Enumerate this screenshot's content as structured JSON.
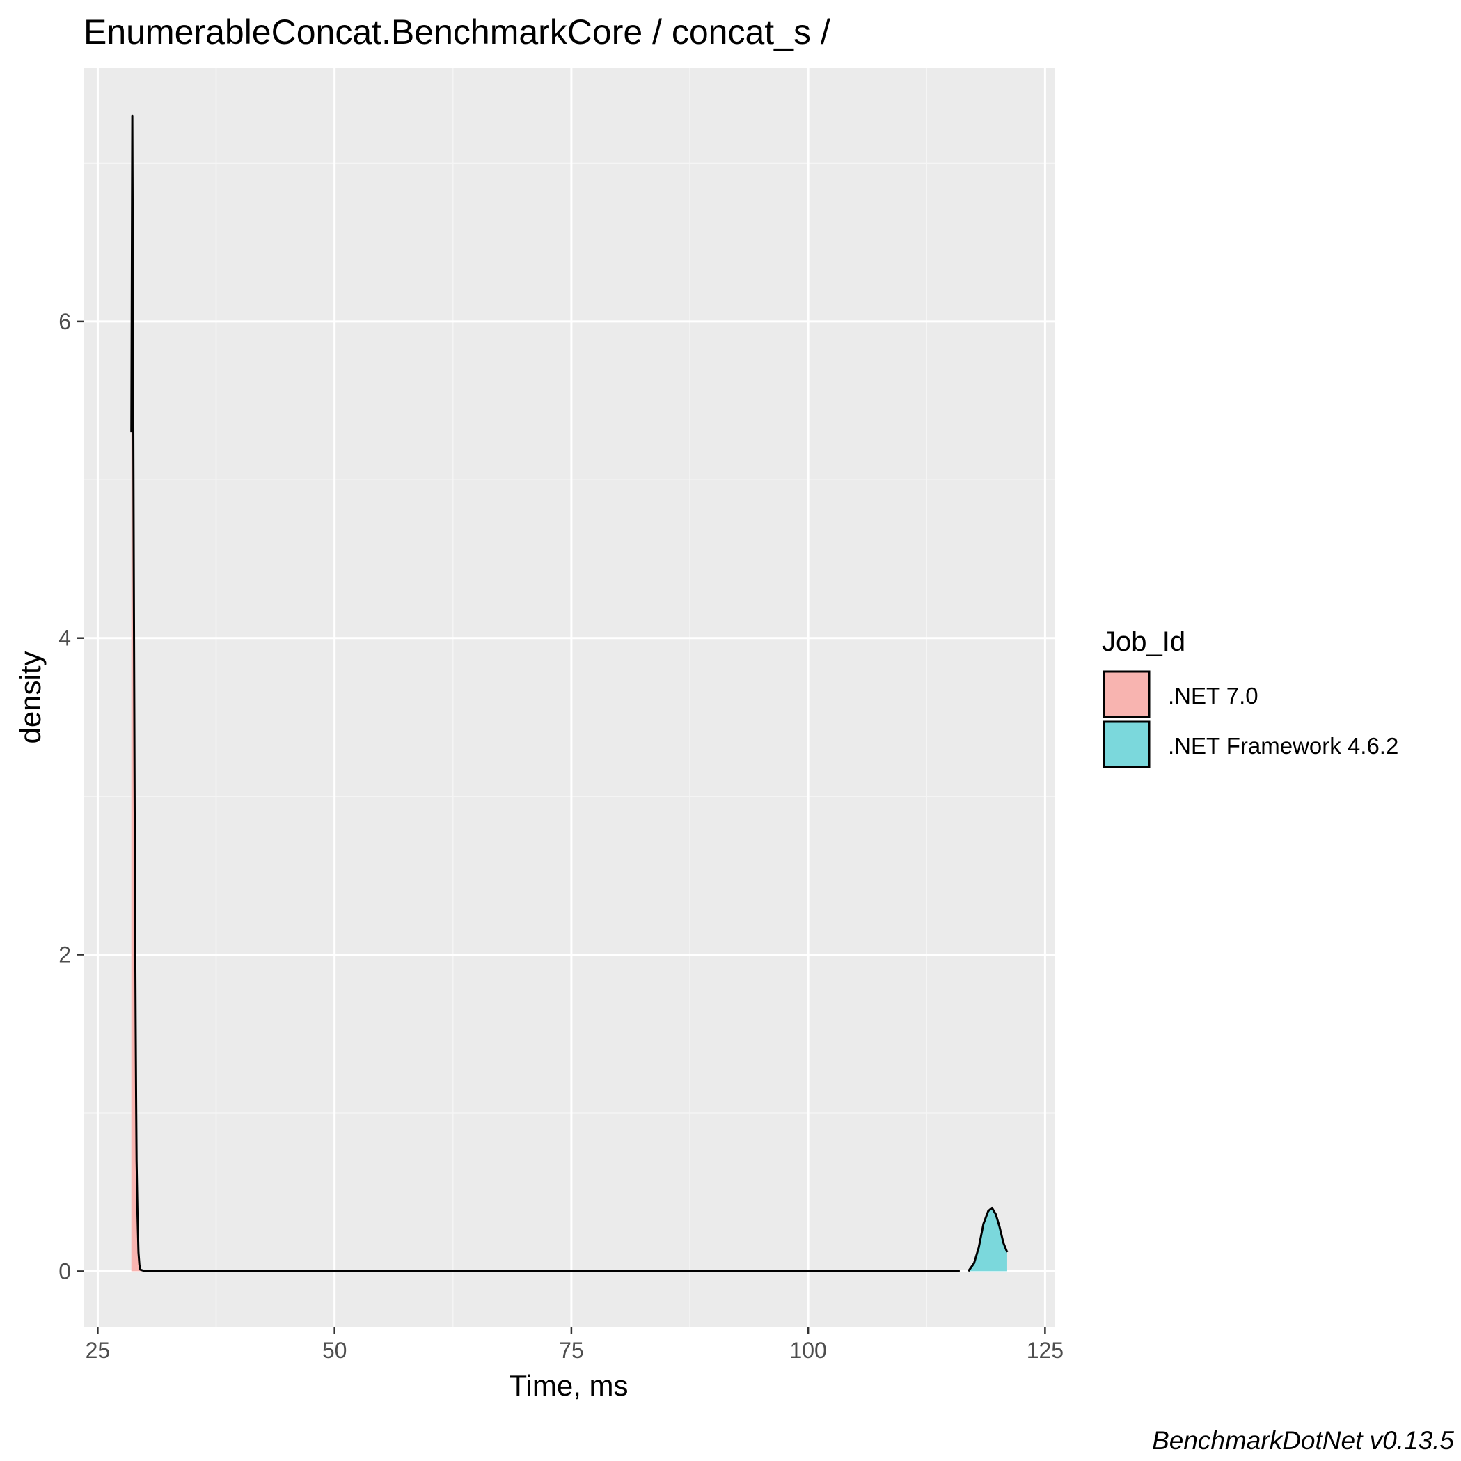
{
  "chart_data": {
    "type": "area",
    "title": "EnumerableConcat.BenchmarkCore / concat_s /",
    "xlabel": "Time, ms",
    "ylabel": "density",
    "xlim": [
      23.5,
      126.0
    ],
    "ylim": [
      -0.35,
      7.6
    ],
    "x_ticks": [
      25,
      50,
      75,
      100,
      125
    ],
    "x_tick_labels": [
      "25",
      "50",
      "75",
      "100",
      "125"
    ],
    "y_ticks": [
      0,
      2,
      4,
      6
    ],
    "y_tick_labels": [
      "0",
      "2",
      "4",
      "6"
    ],
    "grid": true,
    "legend": {
      "title": "Job_Id",
      "position": "right",
      "entries": [
        ".NET 7.0",
        ".NET Framework 4.6.2"
      ]
    },
    "series": [
      {
        "name": ".NET 7.0",
        "color": "#f8b4b0",
        "x": [
          28.55,
          28.6,
          28.65,
          28.7,
          28.75,
          28.8,
          28.85,
          28.9,
          28.95,
          29.0,
          29.05,
          29.1,
          29.2,
          29.3,
          29.4,
          29.5,
          30,
          40,
          60,
          80,
          100,
          110,
          116
        ],
        "y": [
          5.3,
          6.3,
          7.3,
          6.4,
          5.4,
          4.5,
          3.7,
          2.9,
          2.2,
          1.6,
          1.1,
          0.7,
          0.35,
          0.12,
          0.04,
          0.01,
          0,
          0,
          0,
          0,
          0,
          0,
          0
        ]
      },
      {
        "name": ".NET Framework 4.6.2",
        "color": "#7bd8dc",
        "x": [
          116.9,
          117.5,
          118.0,
          118.5,
          119.0,
          119.4,
          119.8,
          120.2,
          120.6,
          121.0
        ],
        "y": [
          0.0,
          0.05,
          0.15,
          0.3,
          0.38,
          0.4,
          0.36,
          0.28,
          0.18,
          0.12
        ]
      }
    ]
  },
  "caption": "BenchmarkDotNet v0.13.5"
}
